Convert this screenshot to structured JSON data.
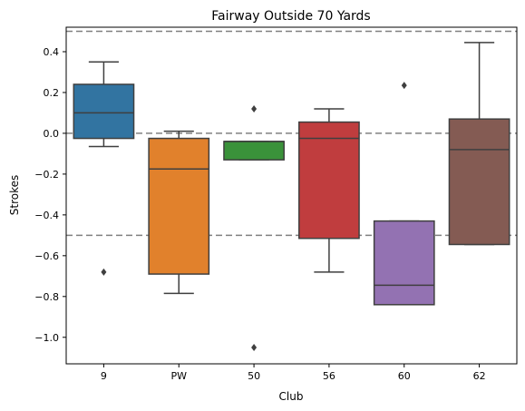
{
  "chart_data": {
    "type": "box",
    "title": "Fairway Outside 70 Yards",
    "xlabel": "Club",
    "ylabel": "Strokes",
    "ylim": [
      -1.13,
      0.52
    ],
    "yticks": [
      0.4,
      0.2,
      0.0,
      -0.2,
      -0.4,
      -0.6,
      -0.8,
      -1.0
    ],
    "ytick_labels": [
      "0.4",
      "0.2",
      "0.0",
      "−0.2",
      "−0.4",
      "−0.6",
      "−0.8",
      "−1.0"
    ],
    "reference_lines": [
      0.5,
      0.0,
      -0.5
    ],
    "grid": false,
    "categories": [
      "9",
      "PW",
      "50",
      "56",
      "60",
      "62"
    ],
    "boxes": [
      {
        "category": "9",
        "color": "#3274a1",
        "whisker_low": -0.065,
        "q1": -0.025,
        "median": 0.1,
        "q3": 0.24,
        "whisker_high": 0.35,
        "outliers": [
          -0.68
        ]
      },
      {
        "category": "PW",
        "color": "#e1812c",
        "whisker_low": -0.785,
        "q1": -0.69,
        "median": -0.175,
        "q3": -0.025,
        "whisker_high": 0.01,
        "outliers": []
      },
      {
        "category": "50",
        "color": "#3a923a",
        "whisker_low": -0.13,
        "q1": -0.13,
        "median": -0.04,
        "q3": -0.04,
        "whisker_high": -0.04,
        "outliers": [
          0.12,
          -1.05
        ]
      },
      {
        "category": "56",
        "color": "#c03d3e",
        "whisker_low": -0.68,
        "q1": -0.515,
        "median": -0.025,
        "q3": 0.055,
        "whisker_high": 0.12,
        "outliers": []
      },
      {
        "category": "60",
        "color": "#9372b2",
        "whisker_low": -0.84,
        "q1": -0.84,
        "median": -0.745,
        "q3": -0.43,
        "whisker_high": -0.43,
        "outliers": [
          0.235
        ]
      },
      {
        "category": "62",
        "color": "#845b53",
        "whisker_low": -0.545,
        "q1": -0.545,
        "median": -0.08,
        "q3": 0.07,
        "whisker_high": 0.445,
        "outliers": []
      }
    ]
  }
}
